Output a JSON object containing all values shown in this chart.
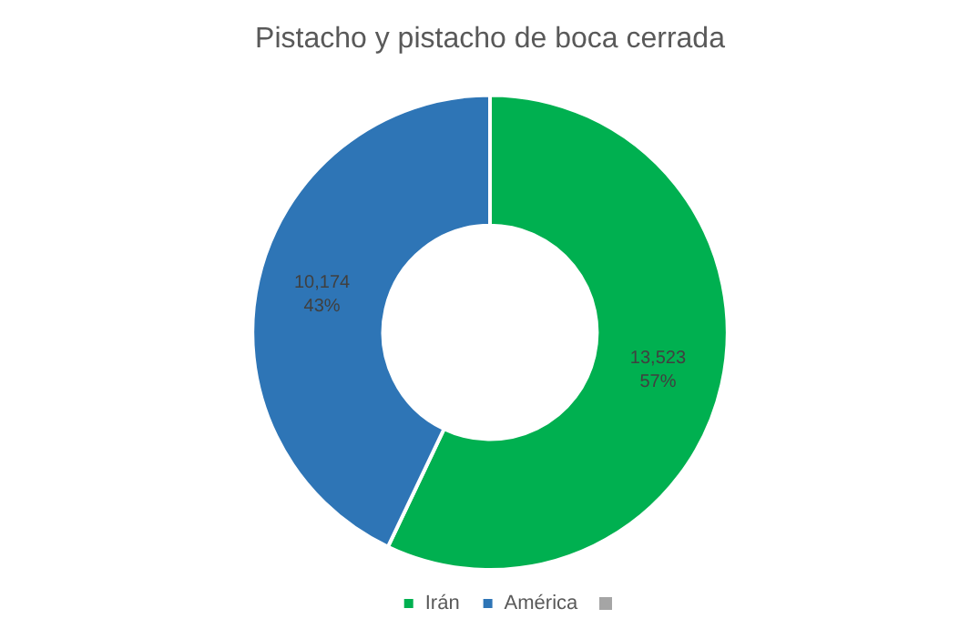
{
  "chart_data": {
    "type": "donut",
    "title": "Pistacho y pistacho de boca cerrada",
    "categories": [
      "Irán",
      "América"
    ],
    "values": [
      13523,
      10174
    ],
    "colors": [
      "#00b050",
      "#2e75b6"
    ],
    "value_labels": [
      "13,523\n57%",
      "10,174\n43%"
    ],
    "legend": "bottom"
  }
}
